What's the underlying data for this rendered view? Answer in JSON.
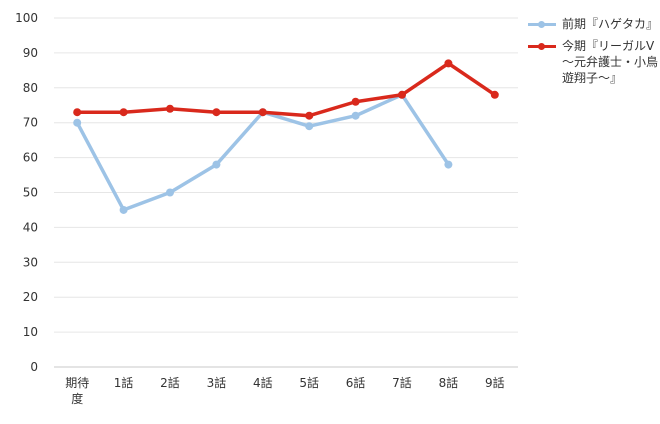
{
  "chart_data": {
    "type": "line",
    "categories": [
      "期待度",
      "1話",
      "2話",
      "3話",
      "4話",
      "5話",
      "6話",
      "7話",
      "8話",
      "9話"
    ],
    "ylim": [
      0,
      100
    ],
    "yticks": [
      0,
      10,
      20,
      30,
      40,
      50,
      60,
      70,
      80,
      90,
      100
    ],
    "grid": true,
    "legend_position": "right",
    "series": [
      {
        "name": "前期『ハゲタカ』",
        "color": "#9dc3e6",
        "values": [
          70,
          45,
          50,
          58,
          73,
          69,
          72,
          78,
          58,
          null
        ]
      },
      {
        "name": "今期『リーガルV～元弁護士・小鳥遊翔子～』",
        "color": "#d9291c",
        "values": [
          73,
          73,
          74,
          73,
          73,
          72,
          76,
          78,
          87,
          78
        ]
      }
    ]
  }
}
